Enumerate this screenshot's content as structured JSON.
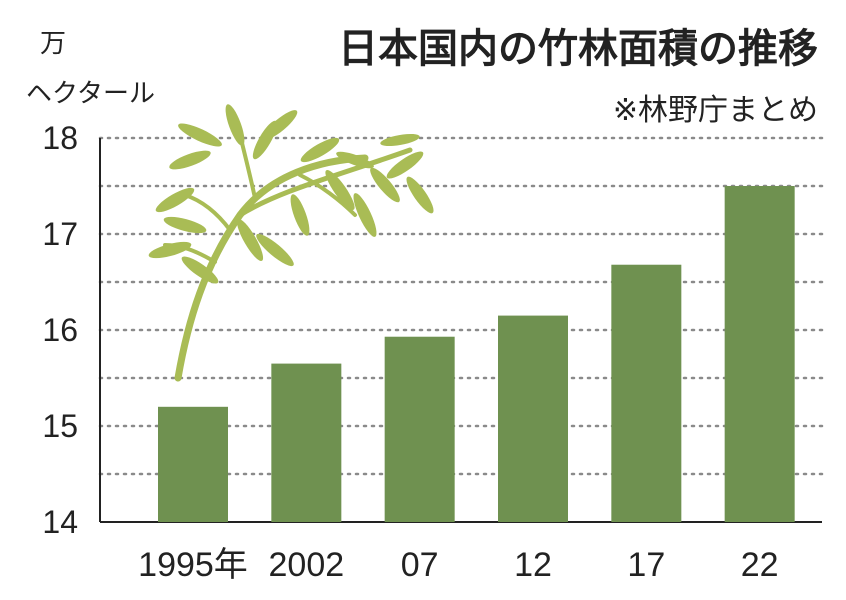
{
  "colors": {
    "bar": "#6f9150",
    "bamboo": "#a9bc55",
    "grid": "#8a8a8a"
  },
  "icons": {
    "decoration": "bamboo-branch-icon"
  },
  "chart_data": {
    "type": "bar",
    "title": "日本国内の竹林面積の推移",
    "source": "※林野庁まとめ",
    "unit_line1": "万",
    "unit_line2": "ヘクタール",
    "categories": [
      "1995年",
      "2002",
      "07",
      "12",
      "17",
      "22"
    ],
    "values": [
      15.2,
      15.65,
      15.93,
      16.15,
      16.68,
      17.5
    ],
    "yticks": [
      "18",
      "17",
      "16",
      "15",
      "14"
    ],
    "ylim": [
      14,
      18
    ],
    "grid": true
  }
}
